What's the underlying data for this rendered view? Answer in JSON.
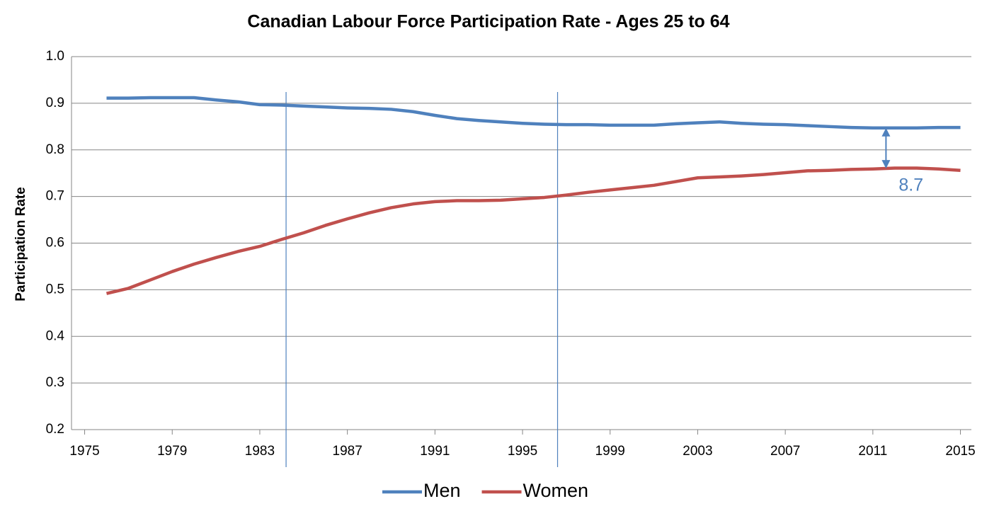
{
  "chart_data": {
    "type": "line",
    "title": "Canadian Labour Force Participation Rate - Ages 25 to 64",
    "y_label": "Participation Rate",
    "x": [
      1976,
      1977,
      1978,
      1979,
      1980,
      1981,
      1982,
      1983,
      1984,
      1985,
      1986,
      1987,
      1988,
      1989,
      1990,
      1991,
      1992,
      1993,
      1994,
      1995,
      1996,
      1997,
      1998,
      1999,
      2000,
      2001,
      2002,
      2003,
      2004,
      2005,
      2006,
      2007,
      2008,
      2009,
      2010,
      2011,
      2012,
      2013,
      2014,
      2015
    ],
    "series": [
      {
        "name": "Men",
        "color": "#4f81bd",
        "values": [
          0.911,
          0.911,
          0.912,
          0.912,
          0.912,
          0.907,
          0.903,
          0.897,
          0.896,
          0.894,
          0.892,
          0.89,
          0.889,
          0.887,
          0.882,
          0.874,
          0.867,
          0.863,
          0.86,
          0.857,
          0.855,
          0.854,
          0.854,
          0.853,
          0.853,
          0.853,
          0.856,
          0.858,
          0.86,
          0.857,
          0.855,
          0.854,
          0.852,
          0.85,
          0.848,
          0.847,
          0.847,
          0.847,
          0.848,
          0.848
        ]
      },
      {
        "name": "Women",
        "color": "#c0504d",
        "values": [
          0.492,
          0.503,
          0.521,
          0.539,
          0.555,
          0.569,
          0.582,
          0.593,
          0.608,
          0.622,
          0.638,
          0.652,
          0.665,
          0.676,
          0.684,
          0.689,
          0.691,
          0.691,
          0.692,
          0.695,
          0.698,
          0.703,
          0.709,
          0.714,
          0.719,
          0.724,
          0.732,
          0.74,
          0.742,
          0.744,
          0.747,
          0.751,
          0.755,
          0.756,
          0.758,
          0.759,
          0.761,
          0.761,
          0.759,
          0.756
        ]
      }
    ],
    "xlim": [
      1974.4,
      2015.5
    ],
    "xticks": [
      1975,
      1979,
      1983,
      1987,
      1991,
      1995,
      1999,
      2003,
      2007,
      2011,
      2015
    ],
    "ylim": [
      0.2,
      1.0
    ],
    "yticks": [
      0.2,
      0.3,
      0.4,
      0.5,
      0.6,
      0.7,
      0.8,
      0.9,
      {
        "value": 1.0,
        "label": "1.0"
      }
    ],
    "grid": true,
    "vlines": [
      1984.2,
      1996.6
    ],
    "annotation": {
      "label": "8.7",
      "x": 2011.6,
      "from": 0.847,
      "to": 0.76
    },
    "legend": "bottom"
  }
}
